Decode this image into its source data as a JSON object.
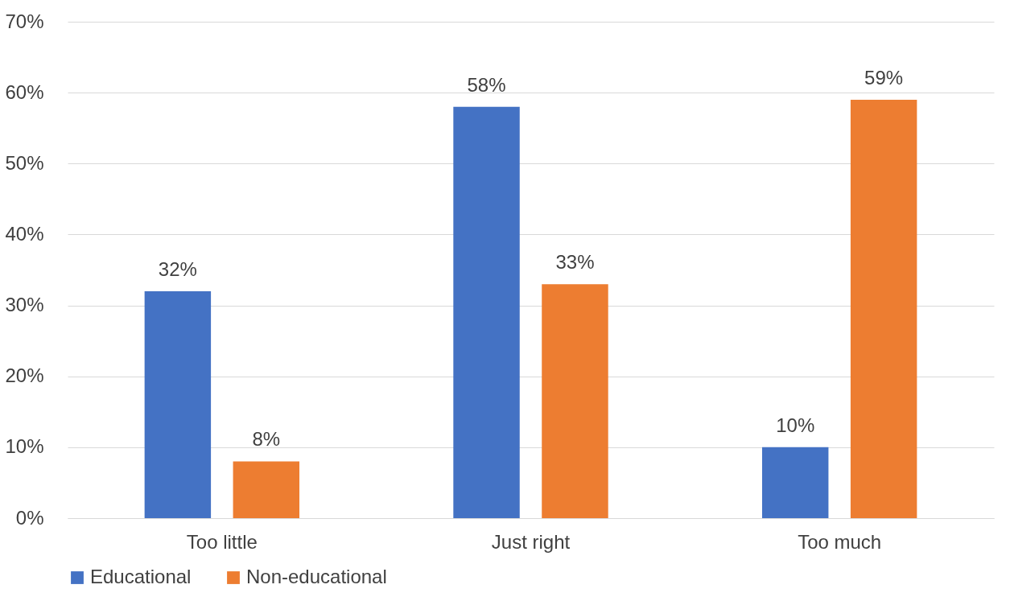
{
  "chart_data": {
    "type": "bar",
    "categories": [
      "Too little",
      "Just right",
      "Too much"
    ],
    "series": [
      {
        "name": "Educational",
        "color": "#4472c4",
        "values": [
          32,
          58,
          10
        ],
        "value_labels": [
          "32%",
          "58%",
          "10%"
        ]
      },
      {
        "name": "Non-educational",
        "color": "#ed7d31",
        "values": [
          8,
          33,
          59
        ],
        "value_labels": [
          "8%",
          "33%",
          "59%"
        ]
      }
    ],
    "ylim": [
      0,
      70
    ],
    "yticks": [
      {
        "value": 0,
        "label": "0%"
      },
      {
        "value": 10,
        "label": "10%"
      },
      {
        "value": 20,
        "label": "20%"
      },
      {
        "value": 30,
        "label": "30%"
      },
      {
        "value": 40,
        "label": "40%"
      },
      {
        "value": 50,
        "label": "50%"
      },
      {
        "value": 60,
        "label": "60%"
      },
      {
        "value": 70,
        "label": "70%"
      }
    ],
    "grid": "y",
    "legend": "bottom"
  }
}
